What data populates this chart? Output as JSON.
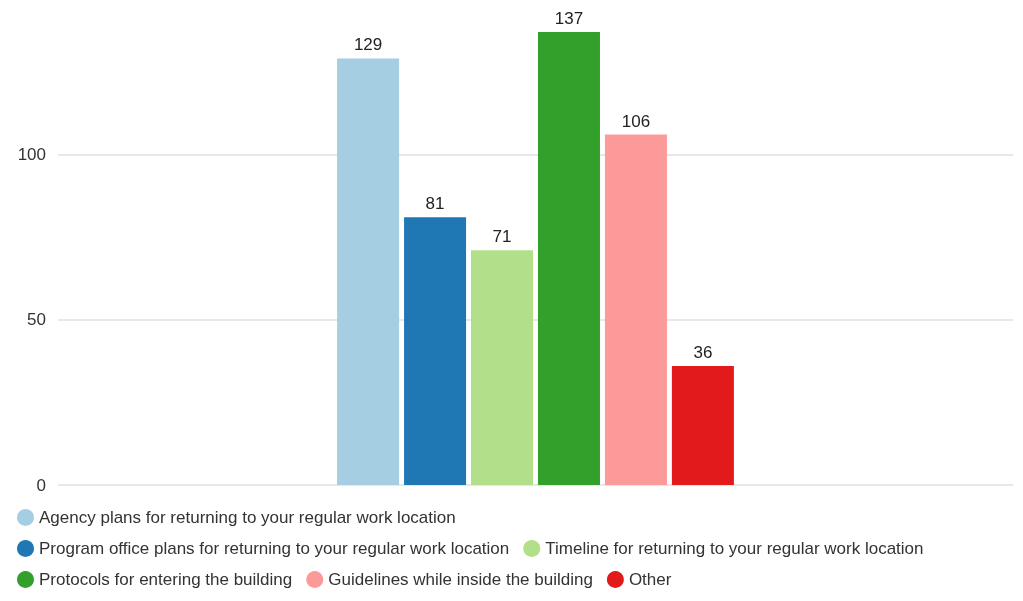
{
  "chart_data": {
    "type": "bar",
    "categories": [
      null
    ],
    "series": [
      {
        "name": "Agency plans for returning to your regular work location",
        "color": "#a6cee3",
        "values": [
          129
        ]
      },
      {
        "name": "Program office plans for returning to your regular work location",
        "color": "#1f78b4",
        "values": [
          81
        ]
      },
      {
        "name": "Timeline for returning to your regular work location",
        "color": "#b2df8a",
        "values": [
          71
        ]
      },
      {
        "name": "Protocols for entering the building",
        "color": "#33a02c",
        "values": [
          137
        ]
      },
      {
        "name": "Guidelines while inside the building",
        "color": "#fb9a99",
        "values": [
          106
        ]
      },
      {
        "name": "Other",
        "color": "#e31a1c",
        "values": [
          36
        ]
      }
    ],
    "ylim": [
      0,
      137
    ],
    "yticks": [
      0,
      50,
      100
    ],
    "grid": "y",
    "legend": "bottom",
    "data_labels": true,
    "marker": "circle"
  }
}
